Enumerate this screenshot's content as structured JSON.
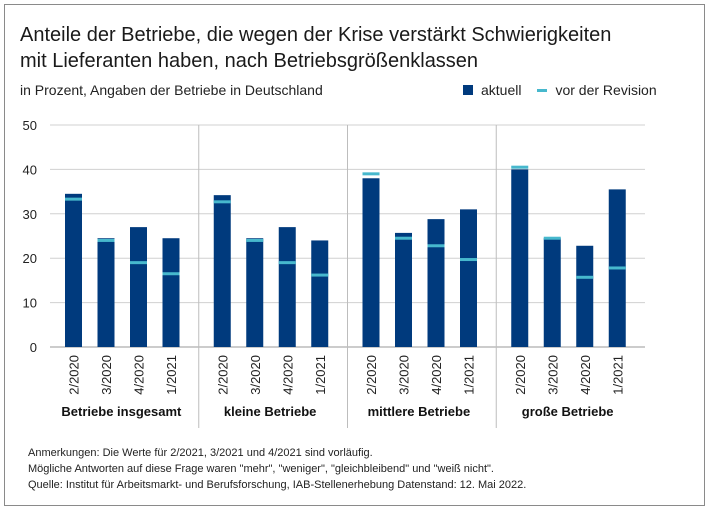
{
  "title_line1": "Anteile der Betriebe, die wegen der Krise verstärkt Schwierigkeiten",
  "title_line2": "mit Lieferanten haben, nach Betriebsgrößenklassen",
  "subtitle": "in Prozent, Angaben der Betriebe in Deutschland",
  "legend": {
    "current": "aktuell",
    "before_revision": "vor der Revision"
  },
  "colors": {
    "bar": "#003a7d",
    "marker": "#47b8cd",
    "grid": "#d0d0d0"
  },
  "notes": [
    "Anmerkungen: Die Werte für 2/2021, 3/2021 und 4/2021 sind vorläufig.",
    "Mögliche Antworten auf diese Frage waren \"mehr\", \"weniger\", \"gleichbleibend\" und \"weiß nicht\".",
    "Quelle: Institut für Arbeitsmarkt- und Berufsforschung, IAB-Stellenerhebung Datenstand: 12. Mai 2022."
  ],
  "chart_data": {
    "type": "bar",
    "ylim": [
      0,
      50
    ],
    "yticks": [
      0,
      10,
      20,
      30,
      40,
      50
    ],
    "categories": [
      "2/2020",
      "3/2020",
      "4/2020",
      "1/2021"
    ],
    "groups": [
      {
        "name": "Betriebe insgesamt",
        "aktuell": [
          34.5,
          24.5,
          27,
          24.5
        ],
        "vor_der_revision": [
          33.3,
          24,
          19,
          16.5
        ]
      },
      {
        "name": "kleine Betriebe",
        "aktuell": [
          34.2,
          24.5,
          27,
          24
        ],
        "vor_der_revision": [
          32.7,
          24,
          19,
          16.2
        ]
      },
      {
        "name": "mittlere Betriebe",
        "aktuell": [
          38,
          25.7,
          28.8,
          31
        ],
        "vor_der_revision": [
          39,
          24.5,
          22.8,
          19.7
        ]
      },
      {
        "name": "große Betriebe",
        "aktuell": [
          40,
          24.5,
          22.8,
          35.5
        ],
        "vor_der_revision": [
          40.5,
          24.5,
          15.7,
          17.8
        ]
      }
    ]
  }
}
